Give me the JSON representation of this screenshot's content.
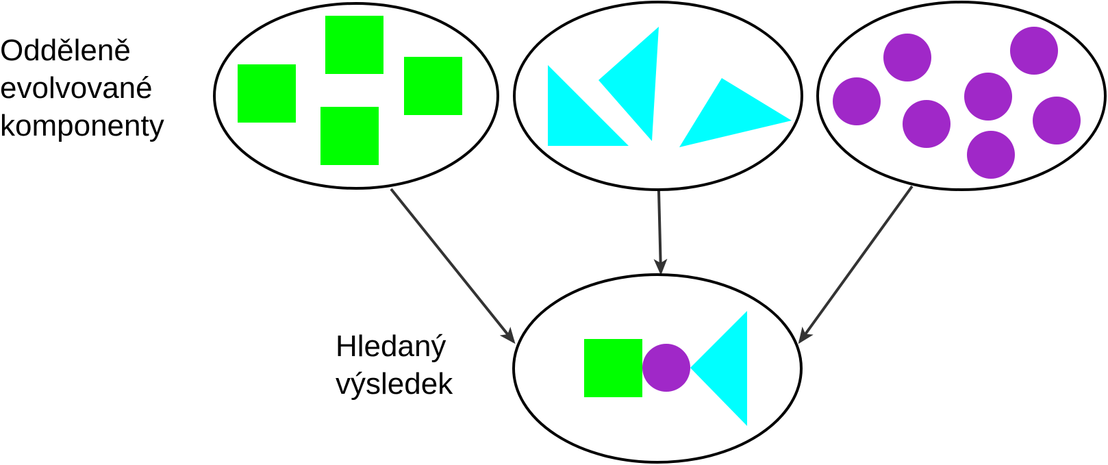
{
  "labels": {
    "components_line1": "Odděleně",
    "components_line2": "evolvované",
    "components_line3": "komponenty",
    "result_line1": "Hledaný",
    "result_line2": "výsledek"
  },
  "colors": {
    "square": "#00ff00",
    "triangle": "#00ffff",
    "circle": "#a028c8",
    "outline": "#000000",
    "arrow": "#333333"
  }
}
